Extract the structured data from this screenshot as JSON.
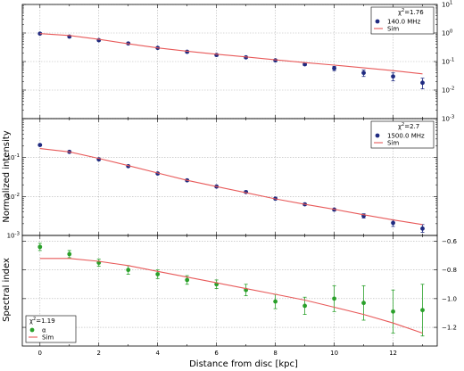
{
  "chart_data": [
    {
      "type": "scatter",
      "panel": "top",
      "yscale": "log",
      "ylabel": "Normalized intensity",
      "ylim": [
        0.001,
        10
      ],
      "y_ticks_right": [
        "10^1",
        "10^0",
        "10^-1",
        "10^-2",
        "10^-3"
      ],
      "xlim": [
        -0.6,
        13.5
      ],
      "grid": true,
      "legend_placement": "top-right",
      "chi2_label": "χ²=1.76",
      "series": [
        {
          "name": "140.0 MHz",
          "kind": "points",
          "color": "#1f2a80",
          "x": [
            0,
            1,
            2,
            3,
            4,
            5,
            6,
            7,
            8,
            9,
            10,
            11,
            12,
            13
          ],
          "y": [
            0.95,
            0.75,
            0.56,
            0.43,
            0.3,
            0.22,
            0.17,
            0.14,
            0.11,
            0.08,
            0.058,
            0.04,
            0.03,
            0.018
          ],
          "yerr_lo": [
            0.06,
            0.05,
            0.04,
            0.03,
            0.02,
            0.02,
            0.015,
            0.012,
            0.01,
            0.008,
            0.01,
            0.01,
            0.009,
            0.007
          ],
          "yerr_hi": [
            0.06,
            0.05,
            0.04,
            0.03,
            0.02,
            0.02,
            0.015,
            0.012,
            0.01,
            0.008,
            0.01,
            0.01,
            0.01,
            0.008
          ]
        },
        {
          "name": "Sim",
          "kind": "line",
          "color": "#e85a5a",
          "x": [
            0,
            1,
            2,
            3,
            4,
            5,
            6,
            7,
            8,
            9,
            10,
            11,
            12,
            13
          ],
          "y": [
            0.95,
            0.82,
            0.6,
            0.42,
            0.3,
            0.23,
            0.18,
            0.145,
            0.115,
            0.092,
            0.075,
            0.06,
            0.048,
            0.037
          ]
        }
      ]
    },
    {
      "type": "scatter",
      "panel": "middle",
      "yscale": "log",
      "ylim": [
        0.001,
        1
      ],
      "y_ticks_left": [
        "10^-1",
        "10^-2",
        "10^-3"
      ],
      "xlim": [
        -0.6,
        13.5
      ],
      "grid": true,
      "legend_placement": "top-right",
      "chi2_label": "χ²=2.7",
      "series": [
        {
          "name": "1500.0 MHz",
          "kind": "points",
          "color": "#1f2a80",
          "x": [
            0,
            1,
            2,
            3,
            4,
            5,
            6,
            7,
            8,
            9,
            10,
            11,
            12,
            13
          ],
          "y": [
            0.21,
            0.14,
            0.09,
            0.06,
            0.039,
            0.026,
            0.018,
            0.013,
            0.0088,
            0.0063,
            0.0046,
            0.0032,
            0.0021,
            0.0015
          ],
          "yerr_lo": [
            0.01,
            0.008,
            0.005,
            0.003,
            0.002,
            0.0015,
            0.001,
            0.0008,
            0.0005,
            0.0004,
            0.0003,
            0.0004,
            0.0004,
            0.0003
          ],
          "yerr_hi": [
            0.01,
            0.008,
            0.005,
            0.003,
            0.002,
            0.0015,
            0.001,
            0.0008,
            0.0005,
            0.0004,
            0.0003,
            0.0004,
            0.0004,
            0.0004
          ]
        },
        {
          "name": "Sim",
          "kind": "line",
          "color": "#e85a5a",
          "x": [
            0,
            1,
            2,
            3,
            4,
            5,
            6,
            7,
            8,
            9,
            10,
            11,
            12,
            13
          ],
          "y": [
            0.17,
            0.14,
            0.095,
            0.062,
            0.04,
            0.026,
            0.018,
            0.0125,
            0.0087,
            0.0063,
            0.0047,
            0.0034,
            0.0025,
            0.0019
          ]
        }
      ]
    },
    {
      "type": "scatter",
      "panel": "bottom",
      "yscale": "linear",
      "ylabel": "Spectral index",
      "ylim": [
        -1.33,
        -0.56
      ],
      "y_ticks_right": [
        "−0.6",
        "−0.8",
        "−1.0",
        "−1.2"
      ],
      "xlabel": "Distance from disc [kpc]",
      "xlim": [
        -0.6,
        13.5
      ],
      "x_ticks": [
        "0",
        "2",
        "4",
        "6",
        "8",
        "10",
        "12"
      ],
      "grid": true,
      "legend_placement": "bottom-left",
      "chi2_label": "χ²=1.19",
      "series": [
        {
          "name": "α",
          "kind": "points",
          "color": "#2aa02a",
          "x": [
            0,
            1,
            2,
            3,
            4,
            5,
            6,
            7,
            8,
            9,
            10,
            11,
            12,
            13
          ],
          "y": [
            -0.64,
            -0.69,
            -0.75,
            -0.8,
            -0.83,
            -0.87,
            -0.9,
            -0.94,
            -1.02,
            -1.05,
            -1.0,
            -1.03,
            -1.09,
            -1.08
          ],
          "yerr": [
            0.025,
            0.025,
            0.025,
            0.03,
            0.03,
            0.03,
            0.03,
            0.04,
            0.05,
            0.06,
            0.09,
            0.12,
            0.15,
            0.18
          ]
        },
        {
          "name": "Sim",
          "kind": "line",
          "color": "#e85a5a",
          "x": [
            0,
            1,
            2,
            3,
            4,
            5,
            6,
            7,
            8,
            9,
            10,
            11,
            12,
            13
          ],
          "y": [
            -0.72,
            -0.72,
            -0.74,
            -0.77,
            -0.81,
            -0.85,
            -0.89,
            -0.93,
            -0.97,
            -1.01,
            -1.06,
            -1.11,
            -1.17,
            -1.24
          ]
        }
      ]
    }
  ]
}
